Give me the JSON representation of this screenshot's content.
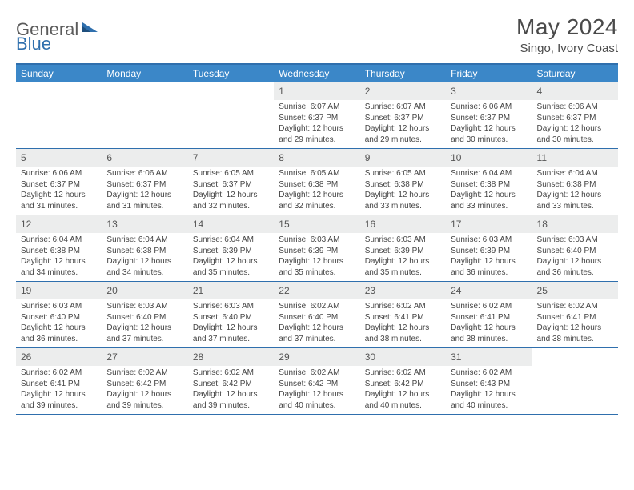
{
  "brand": {
    "part1": "General",
    "part2": "Blue"
  },
  "title": "May 2024",
  "location": "Singo, Ivory Coast",
  "colors": {
    "accent": "#3b87c8",
    "border": "#2f6fad",
    "daybar": "#eceded",
    "text": "#4a4a4a"
  },
  "dayHeaders": [
    "Sunday",
    "Monday",
    "Tuesday",
    "Wednesday",
    "Thursday",
    "Friday",
    "Saturday"
  ],
  "weeks": [
    [
      {
        "n": "",
        "sr": "",
        "ss": "",
        "dl": ""
      },
      {
        "n": "",
        "sr": "",
        "ss": "",
        "dl": ""
      },
      {
        "n": "",
        "sr": "",
        "ss": "",
        "dl": ""
      },
      {
        "n": "1",
        "sr": "6:07 AM",
        "ss": "6:37 PM",
        "dl": "12 hours and 29 minutes."
      },
      {
        "n": "2",
        "sr": "6:07 AM",
        "ss": "6:37 PM",
        "dl": "12 hours and 29 minutes."
      },
      {
        "n": "3",
        "sr": "6:06 AM",
        "ss": "6:37 PM",
        "dl": "12 hours and 30 minutes."
      },
      {
        "n": "4",
        "sr": "6:06 AM",
        "ss": "6:37 PM",
        "dl": "12 hours and 30 minutes."
      }
    ],
    [
      {
        "n": "5",
        "sr": "6:06 AM",
        "ss": "6:37 PM",
        "dl": "12 hours and 31 minutes."
      },
      {
        "n": "6",
        "sr": "6:06 AM",
        "ss": "6:37 PM",
        "dl": "12 hours and 31 minutes."
      },
      {
        "n": "7",
        "sr": "6:05 AM",
        "ss": "6:37 PM",
        "dl": "12 hours and 32 minutes."
      },
      {
        "n": "8",
        "sr": "6:05 AM",
        "ss": "6:38 PM",
        "dl": "12 hours and 32 minutes."
      },
      {
        "n": "9",
        "sr": "6:05 AM",
        "ss": "6:38 PM",
        "dl": "12 hours and 33 minutes."
      },
      {
        "n": "10",
        "sr": "6:04 AM",
        "ss": "6:38 PM",
        "dl": "12 hours and 33 minutes."
      },
      {
        "n": "11",
        "sr": "6:04 AM",
        "ss": "6:38 PM",
        "dl": "12 hours and 33 minutes."
      }
    ],
    [
      {
        "n": "12",
        "sr": "6:04 AM",
        "ss": "6:38 PM",
        "dl": "12 hours and 34 minutes."
      },
      {
        "n": "13",
        "sr": "6:04 AM",
        "ss": "6:38 PM",
        "dl": "12 hours and 34 minutes."
      },
      {
        "n": "14",
        "sr": "6:04 AM",
        "ss": "6:39 PM",
        "dl": "12 hours and 35 minutes."
      },
      {
        "n": "15",
        "sr": "6:03 AM",
        "ss": "6:39 PM",
        "dl": "12 hours and 35 minutes."
      },
      {
        "n": "16",
        "sr": "6:03 AM",
        "ss": "6:39 PM",
        "dl": "12 hours and 35 minutes."
      },
      {
        "n": "17",
        "sr": "6:03 AM",
        "ss": "6:39 PM",
        "dl": "12 hours and 36 minutes."
      },
      {
        "n": "18",
        "sr": "6:03 AM",
        "ss": "6:40 PM",
        "dl": "12 hours and 36 minutes."
      }
    ],
    [
      {
        "n": "19",
        "sr": "6:03 AM",
        "ss": "6:40 PM",
        "dl": "12 hours and 36 minutes."
      },
      {
        "n": "20",
        "sr": "6:03 AM",
        "ss": "6:40 PM",
        "dl": "12 hours and 37 minutes."
      },
      {
        "n": "21",
        "sr": "6:03 AM",
        "ss": "6:40 PM",
        "dl": "12 hours and 37 minutes."
      },
      {
        "n": "22",
        "sr": "6:02 AM",
        "ss": "6:40 PM",
        "dl": "12 hours and 37 minutes."
      },
      {
        "n": "23",
        "sr": "6:02 AM",
        "ss": "6:41 PM",
        "dl": "12 hours and 38 minutes."
      },
      {
        "n": "24",
        "sr": "6:02 AM",
        "ss": "6:41 PM",
        "dl": "12 hours and 38 minutes."
      },
      {
        "n": "25",
        "sr": "6:02 AM",
        "ss": "6:41 PM",
        "dl": "12 hours and 38 minutes."
      }
    ],
    [
      {
        "n": "26",
        "sr": "6:02 AM",
        "ss": "6:41 PM",
        "dl": "12 hours and 39 minutes."
      },
      {
        "n": "27",
        "sr": "6:02 AM",
        "ss": "6:42 PM",
        "dl": "12 hours and 39 minutes."
      },
      {
        "n": "28",
        "sr": "6:02 AM",
        "ss": "6:42 PM",
        "dl": "12 hours and 39 minutes."
      },
      {
        "n": "29",
        "sr": "6:02 AM",
        "ss": "6:42 PM",
        "dl": "12 hours and 40 minutes."
      },
      {
        "n": "30",
        "sr": "6:02 AM",
        "ss": "6:42 PM",
        "dl": "12 hours and 40 minutes."
      },
      {
        "n": "31",
        "sr": "6:02 AM",
        "ss": "6:43 PM",
        "dl": "12 hours and 40 minutes."
      },
      {
        "n": "",
        "sr": "",
        "ss": "",
        "dl": ""
      }
    ]
  ],
  "labels": {
    "sunrise": "Sunrise: ",
    "sunset": "Sunset: ",
    "daylight": "Daylight: "
  }
}
